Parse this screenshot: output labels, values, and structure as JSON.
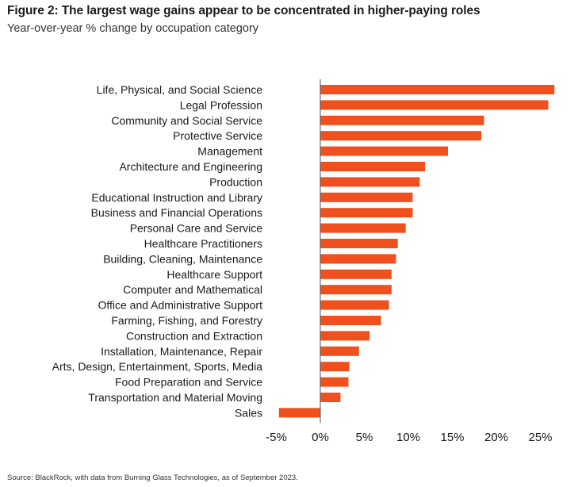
{
  "header": {
    "title": "Figure 2: The largest wage gains appear to be concentrated in higher-paying roles",
    "subtitle": "Year-over-year % change by occupation category"
  },
  "footer": {
    "source": "Source: BlackRock, with data from Burning Glass Technologies, as of September 2023."
  },
  "chart_data": {
    "type": "bar",
    "orientation": "horizontal",
    "title": "Figure 2: The largest wage gains appear to be concentrated in higher-paying roles",
    "subtitle": "Year-over-year % change by occupation category",
    "xlabel": "",
    "ylabel": "",
    "xlim": [
      -5,
      27
    ],
    "x_ticks": [
      -5,
      0,
      5,
      10,
      15,
      20,
      25
    ],
    "x_tick_labels": [
      "-5%",
      "0%",
      "5%",
      "10%",
      "15%",
      "20%",
      "25%"
    ],
    "grid": false,
    "legend": "none",
    "bar_color": "#f0501e",
    "axis_color": "#555555",
    "categories": [
      "Life, Physical, and Social Science",
      "Legal Profession",
      "Community and Social Service",
      "Protective Service",
      "Management",
      "Architecture and Engineering",
      "Production",
      "Educational Instruction and Library",
      "Business and Financial Operations",
      "Personal Care and Service",
      "Healthcare Practitioners",
      "Building, Cleaning, Maintenance",
      "Healthcare Support",
      "Computer and Mathematical",
      "Office and Administrative Support",
      "Farming, Fishing, and Forestry",
      "Construction and Extraction",
      "Installation, Maintenance, Repair",
      "Arts, Design, Entertainment, Sports, Media",
      "Food Preparation and Service",
      "Transportation and Material Moving",
      "Sales"
    ],
    "values": [
      26.6,
      25.9,
      18.6,
      18.3,
      14.5,
      11.9,
      11.3,
      10.5,
      10.5,
      9.7,
      8.8,
      8.6,
      8.1,
      8.1,
      7.8,
      6.9,
      5.6,
      4.4,
      3.3,
      3.2,
      2.3,
      -4.7
    ]
  }
}
